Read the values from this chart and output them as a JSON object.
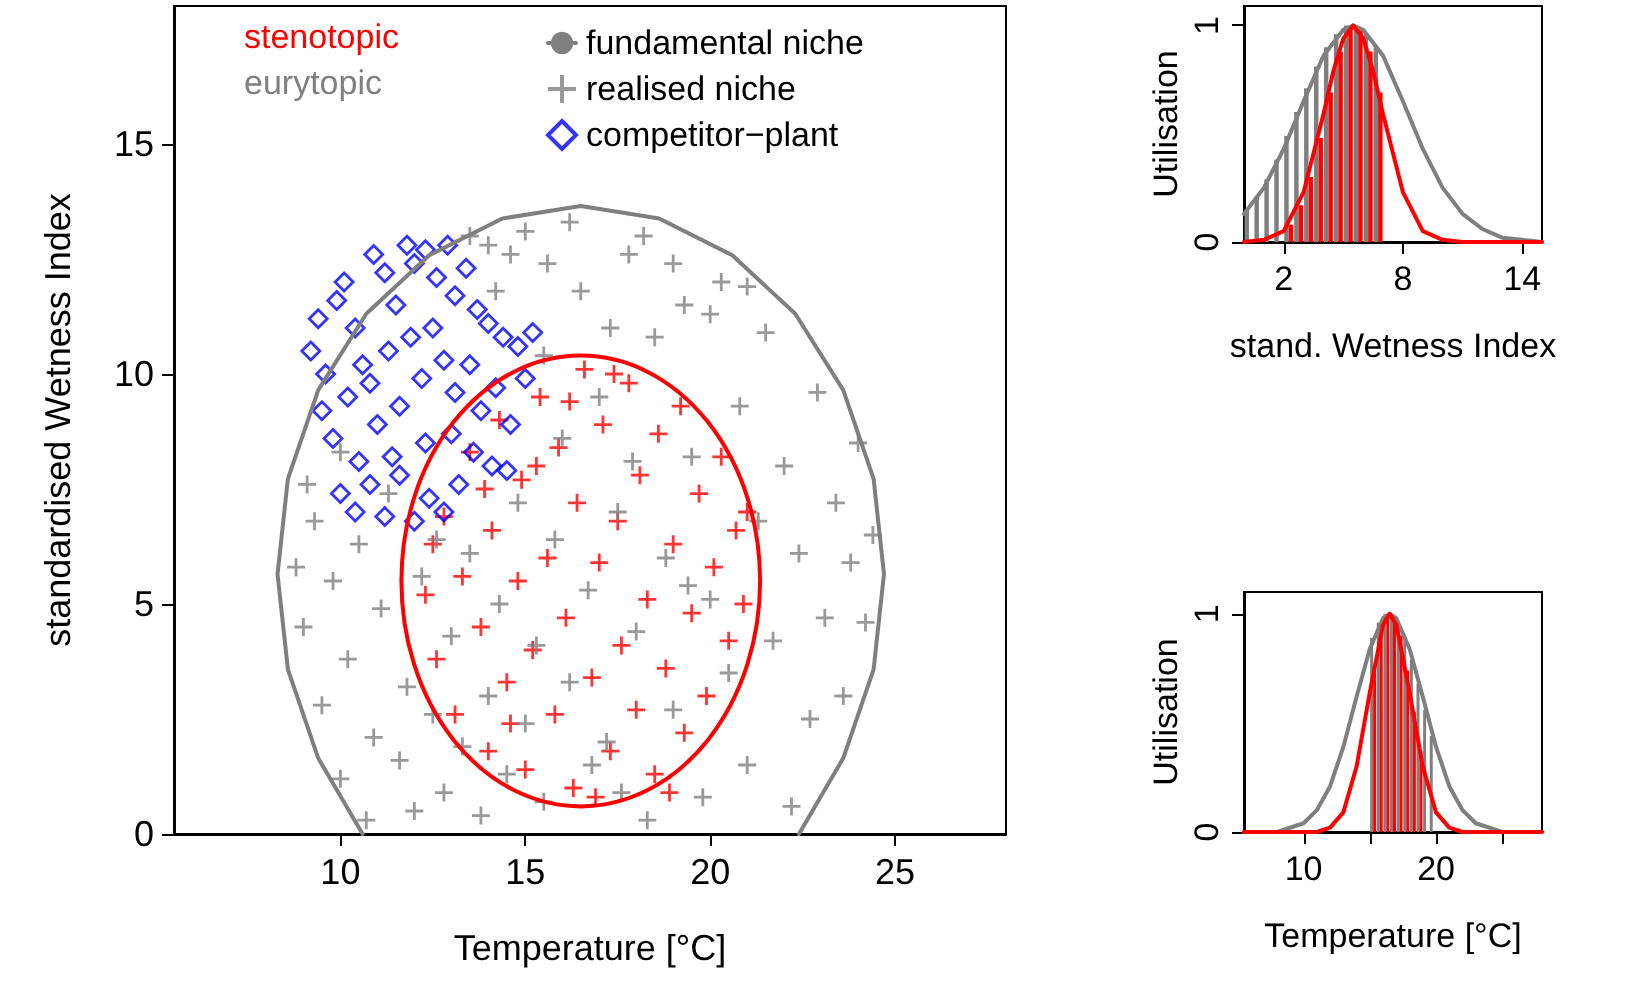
{
  "chart_data": [
    {
      "type": "scatter",
      "xlabel": "Temperature [°C]",
      "ylabel": "standardised Wetness Index",
      "xlim": [
        5.5,
        28
      ],
      "xticks": [
        10,
        15,
        20,
        25
      ],
      "ylim": [
        0,
        18
      ],
      "yticks": [
        0,
        5,
        10,
        15
      ],
      "legend": "top",
      "grid": false,
      "annotations": [
        "stenotopic",
        "eurytopic"
      ],
      "series": [
        {
          "color": "#ff0000",
          "marker": "cross",
          "x": [
            12.3,
            12.6,
            12.8,
            13.1,
            13.3,
            13.5,
            13.8,
            14.0,
            14.1,
            14.3,
            14.5,
            14.8,
            14.9,
            15.0,
            15.2,
            15.4,
            15.6,
            15.8,
            15.9,
            16.1,
            16.3,
            16.4,
            16.6,
            16.8,
            17.0,
            17.1,
            17.3,
            17.5,
            17.6,
            17.8,
            18.0,
            18.1,
            18.3,
            18.5,
            18.6,
            18.8,
            19.0,
            19.2,
            19.3,
            19.5,
            19.7,
            19.9,
            20.1,
            20.3,
            20.5,
            20.7,
            20.9,
            21.0,
            16.2,
            15.3,
            13.9,
            12.5,
            17.4,
            18.9,
            16.9,
            14.6
          ],
          "values": [
            5.2,
            3.8,
            6.9,
            2.6,
            5.6,
            8.3,
            4.5,
            1.8,
            6.6,
            9.0,
            3.3,
            5.5,
            7.7,
            1.4,
            4.0,
            9.5,
            6.0,
            2.6,
            8.4,
            4.7,
            1.0,
            7.2,
            10.1,
            3.4,
            5.9,
            8.9,
            1.8,
            6.8,
            4.1,
            9.8,
            2.7,
            7.8,
            5.1,
            1.3,
            8.7,
            3.6,
            6.3,
            9.3,
            2.2,
            4.8,
            7.4,
            3.0,
            5.8,
            8.2,
            4.2,
            6.6,
            5.0,
            7.0,
            9.4,
            8.0,
            7.5,
            6.3,
            10.0,
            0.9,
            0.8,
            2.4
          ]
        },
        {
          "type": "line",
          "name": "fundamental niche",
          "color": "#7f7f7f",
          "marker": "none",
          "x": [
            22.4,
            23.6,
            24.42,
            24.7,
            24.42,
            23.6,
            22.3,
            20.6,
            18.62,
            16.5,
            14.38,
            12.4,
            10.7,
            9.4,
            8.58,
            8.3,
            8.58,
            9.4,
            10.6
          ],
          "values": [
            0,
            1.65,
            3.58,
            5.65,
            7.72,
            9.65,
            11.31,
            12.58,
            13.38,
            13.65,
            13.38,
            12.58,
            11.31,
            9.65,
            7.72,
            5.65,
            3.58,
            1.65,
            0
          ]
        },
        {
          "name": "realised niche",
          "color": "#7f7f7f",
          "marker": "cross",
          "x": [
            9.0,
            9.3,
            9.5,
            9.8,
            10.0,
            10.2,
            10.5,
            10.7,
            10.9,
            11.1,
            11.3,
            11.6,
            11.8,
            12.0,
            12.2,
            12.5,
            12.8,
            13.0,
            13.3,
            13.5,
            13.8,
            14.0,
            14.3,
            14.5,
            14.8,
            15.0,
            15.3,
            15.5,
            15.8,
            16.0,
            16.2,
            16.5,
            16.7,
            17.0,
            17.2,
            17.5,
            17.8,
            18.0,
            18.3,
            18.5,
            18.8,
            19.0,
            19.3,
            19.5,
            19.8,
            20.0,
            20.3,
            20.5,
            20.8,
            21.0,
            21.3,
            21.5,
            21.7,
            22.0,
            22.2,
            22.4,
            22.7,
            22.9,
            23.1,
            23.4,
            23.6,
            23.8,
            24.0,
            24.2,
            24.4,
            15.0,
            15.6,
            16.2,
            17.3,
            18.2,
            19.0,
            20.0,
            21.0,
            15.5,
            14.6,
            14.2,
            10.0,
            9.1,
            8.8,
            17.6,
            16.8,
            19.4,
            17.9,
            12.6,
            14.0,
            13.5
          ],
          "values": [
            4.5,
            6.8,
            2.8,
            5.5,
            1.2,
            3.8,
            6.3,
            0.3,
            2.1,
            4.9,
            7.4,
            1.6,
            3.2,
            0.5,
            5.6,
            2.6,
            0.9,
            4.3,
            1.9,
            6.1,
            0.4,
            3.0,
            5.0,
            1.3,
            7.2,
            2.4,
            4.1,
            0.7,
            6.4,
            8.6,
            3.3,
            11.8,
            5.3,
            9.5,
            2.0,
            7.0,
            12.6,
            4.4,
            0.3,
            10.8,
            6.0,
            2.7,
            11.5,
            8.2,
            0.8,
            5.1,
            12.0,
            3.5,
            9.3,
            1.5,
            6.8,
            10.9,
            4.2,
            8.0,
            0.6,
            6.1,
            2.5,
            9.6,
            4.7,
            7.2,
            3.0,
            5.9,
            8.5,
            4.6,
            6.5,
            13.1,
            12.4,
            13.3,
            11.0,
            13.0,
            12.4,
            11.3,
            11.9,
            10.4,
            12.6,
            11.8,
            8.3,
            7.6,
            5.8,
            0.9,
            1.5,
            5.4,
            8.1,
            6.4,
            12.8,
            13.0
          ]
        },
        {
          "name": "competitor−plant",
          "color": "#0000ff",
          "marker": "diamond",
          "x": [
            9.2,
            9.4,
            9.6,
            9.9,
            10.1,
            10.4,
            10.6,
            10.9,
            11.2,
            11.5,
            11.8,
            12.0,
            12.3,
            12.6,
            12.9,
            13.1,
            13.4,
            13.7,
            14.0,
            14.4,
            14.8,
            9.5,
            9.8,
            10.2,
            10.5,
            10.8,
            11.0,
            11.3,
            11.6,
            11.9,
            12.2,
            12.5,
            12.8,
            13.1,
            13.5,
            13.8,
            14.2,
            14.6,
            15.0,
            10.0,
            10.4,
            10.8,
            11.2,
            11.6,
            12.0,
            12.4,
            12.8,
            13.2,
            13.6,
            14.1,
            14.5,
            12.3,
            11.4,
            13.0,
            15.2
          ],
          "values": [
            10.5,
            11.2,
            10.0,
            11.6,
            12.0,
            11.0,
            10.2,
            12.6,
            12.2,
            11.5,
            12.8,
            12.4,
            12.7,
            12.1,
            12.8,
            11.7,
            12.3,
            11.4,
            11.1,
            10.8,
            10.6,
            9.2,
            8.6,
            9.5,
            8.1,
            9.8,
            8.9,
            10.5,
            9.3,
            10.8,
            9.9,
            11.0,
            10.3,
            9.6,
            10.2,
            9.2,
            9.7,
            8.9,
            9.9,
            7.4,
            7.0,
            7.6,
            6.9,
            7.8,
            6.8,
            7.3,
            7.0,
            7.6,
            8.3,
            8.0,
            7.9,
            8.5,
            8.2,
            8.7,
            10.9
          ]
        }
      ]
    },
    {
      "type": "bar",
      "xlabel": "stand. Wetness Index",
      "ylabel": "Utilisation",
      "xlim": [
        0,
        15
      ],
      "xticks": [
        2,
        8,
        14
      ],
      "ylim": [
        0,
        1.09
      ],
      "yticks": [
        0,
        1
      ],
      "grid": false,
      "series": [
        {
          "color": "#7f7f7f",
          "x": [
            0.25,
            0.75,
            1.25,
            1.75,
            2.25,
            2.75,
            3.25,
            3.75,
            4.25,
            4.75,
            5.25,
            5.75,
            6.25,
            6.75
          ],
          "values": [
            0.15,
            0.21,
            0.29,
            0.38,
            0.49,
            0.6,
            0.71,
            0.81,
            0.9,
            0.96,
            1,
            1,
            0.96,
            0.9
          ]
        },
        {
          "color": "#ff0000",
          "x": [
            2.25,
            2.75,
            3.25,
            3.75,
            4.25,
            4.75,
            5.25,
            5.75,
            6.25,
            6.75
          ],
          "values": [
            0.08,
            0.17,
            0.3,
            0.48,
            0.69,
            0.88,
            0.99,
            0.99,
            0.88,
            0.69
          ]
        },
        {
          "type": "line",
          "color": "#7f7f7f",
          "marker": "none",
          "x": [
            0,
            1,
            2,
            3,
            4,
            5,
            5.5,
            6,
            7,
            8,
            9,
            10,
            11,
            12,
            13,
            14,
            15
          ],
          "values": [
            0.13,
            0.25,
            0.43,
            0.65,
            0.86,
            0.98,
            1,
            0.98,
            0.86,
            0.65,
            0.43,
            0.25,
            0.13,
            0.06,
            0.02,
            0.01,
            0
          ]
        },
        {
          "type": "line",
          "color": "#ff0000",
          "marker": "none",
          "x": [
            0,
            1,
            2,
            3,
            4,
            4.5,
            5,
            5.5,
            6,
            6.5,
            7,
            8,
            9,
            10,
            11,
            12,
            15
          ],
          "values": [
            0,
            0.01,
            0.05,
            0.23,
            0.59,
            0.79,
            0.94,
            1,
            0.94,
            0.79,
            0.59,
            0.23,
            0.05,
            0.01,
            0,
            0,
            0
          ]
        }
      ]
    },
    {
      "type": "bar",
      "xlabel": "Temperature [°C]",
      "ylabel": "Utilisation",
      "xlim": [
        5.5,
        28
      ],
      "xticks": [
        10,
        {
          "value": 15,
          "label": null
        },
        20,
        {
          "value": 25,
          "label": null
        }
      ],
      "ylim": [
        0,
        1.1
      ],
      "yticks": [
        0,
        1
      ],
      "grid": false,
      "series": [
        {
          "color": "#7f7f7f",
          "x": [
            15.25,
            15.75,
            16.25,
            16.75,
            17.25,
            17.75,
            18.25,
            18.75,
            19.25,
            19.75
          ],
          "values": [
            0.89,
            0.96,
            1,
            1,
            0.96,
            0.89,
            0.79,
            0.68,
            0.56,
            0.44
          ]
        },
        {
          "color": "#ff0000",
          "x": [
            15.25,
            15.75,
            16.25,
            16.75,
            17.25,
            17.75,
            18.25,
            18.75
          ],
          "values": [
            0.74,
            0.9,
            0.99,
            0.99,
            0.9,
            0.74,
            0.55,
            0.37
          ]
        },
        {
          "type": "line",
          "color": "#7f7f7f",
          "marker": "none",
          "x": [
            5.5,
            8,
            10,
            11,
            12,
            13,
            14,
            15,
            16,
            16.5,
            17,
            18,
            19,
            20,
            21,
            22,
            23,
            25,
            28
          ],
          "values": [
            0,
            0,
            0.04,
            0.1,
            0.21,
            0.39,
            0.62,
            0.84,
            0.98,
            1,
            0.98,
            0.84,
            0.62,
            0.39,
            0.21,
            0.1,
            0.04,
            0,
            0
          ]
        },
        {
          "type": "line",
          "color": "#ff0000",
          "marker": "none",
          "x": [
            5.5,
            11,
            12,
            13,
            14,
            15,
            16,
            16.5,
            17,
            18,
            19,
            20,
            21,
            22,
            28
          ],
          "values": [
            0,
            0,
            0.02,
            0.09,
            0.3,
            0.64,
            0.95,
            1,
            0.95,
            0.64,
            0.3,
            0.09,
            0.02,
            0,
            0
          ]
        }
      ]
    }
  ]
}
